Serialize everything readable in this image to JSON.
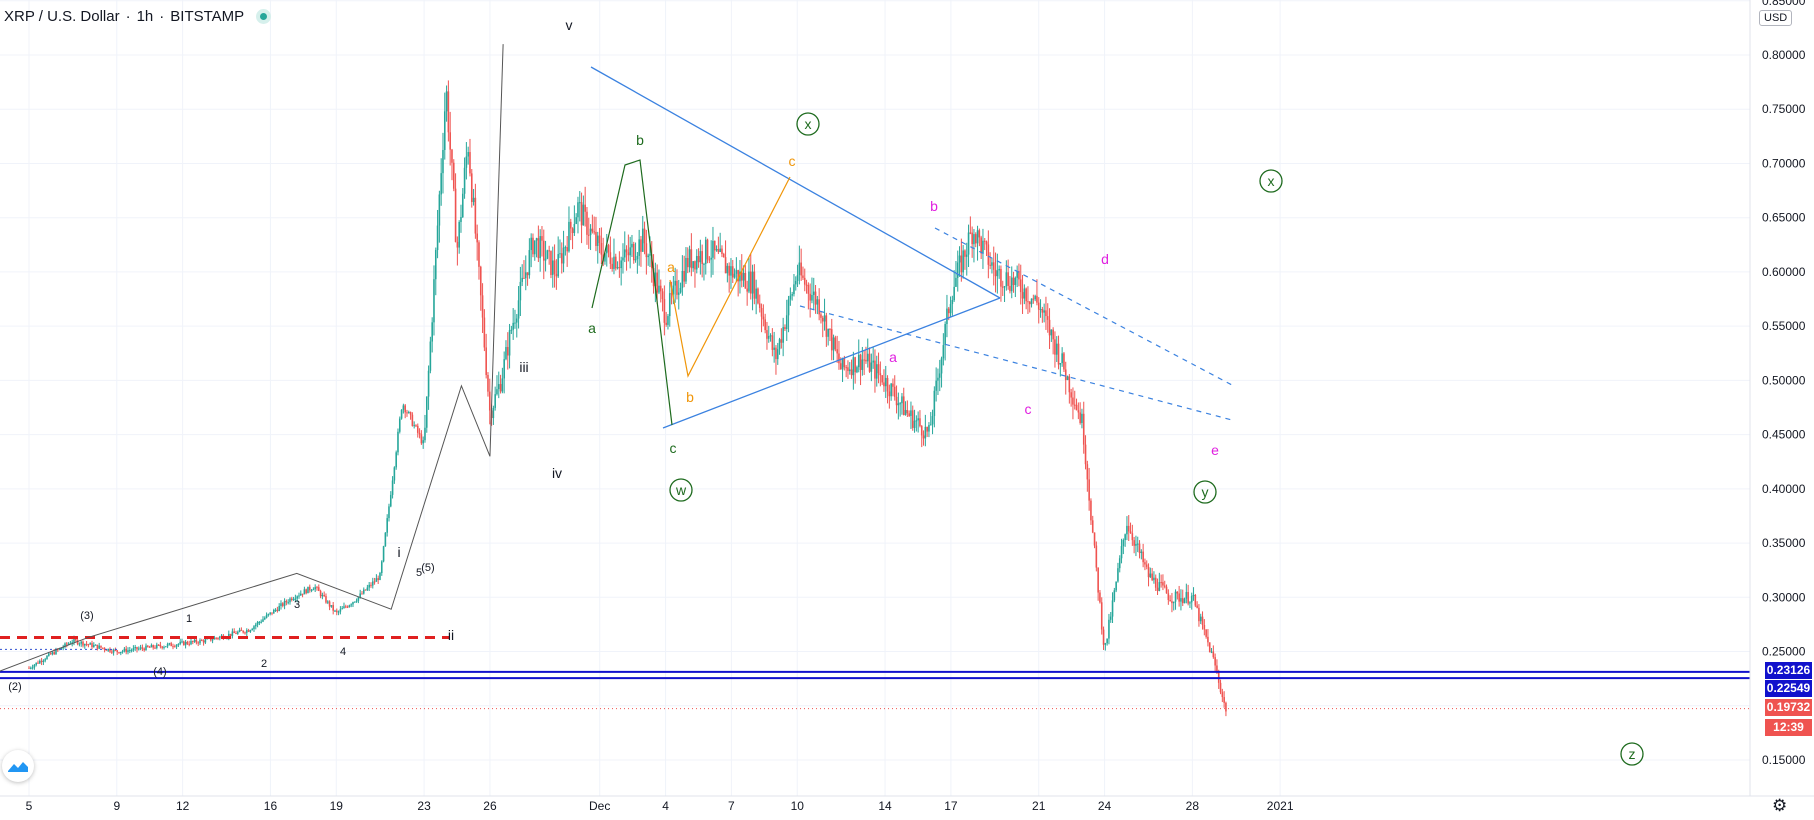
{
  "header": {
    "symbol": "XRP / U.S. Dollar",
    "interval": "1h",
    "exchange": "BITSTAMP",
    "separator": "·"
  },
  "price_axis": {
    "currency_label": "USD",
    "ticks": [
      "0.85000",
      "0.80000",
      "0.75000",
      "0.70000",
      "0.65000",
      "0.60000",
      "0.55000",
      "0.50000",
      "0.45000",
      "0.40000",
      "0.35000",
      "0.30000",
      "0.25000",
      "0.15000"
    ]
  },
  "time_axis": {
    "ticks": [
      "5",
      "9",
      "12",
      "16",
      "19",
      "23",
      "26",
      "Dec",
      "4",
      "7",
      "10",
      "14",
      "17",
      "21",
      "24",
      "28",
      "2021"
    ]
  },
  "price_labels": {
    "level_1": "0.23126",
    "level_2": "0.22549",
    "last_price": "0.19732",
    "countdown": "12:39"
  },
  "colors": {
    "up": "#26a69a",
    "down": "#ef5350",
    "level_line": "#1111cc",
    "red_dash": "#e02020",
    "triangle": "#3b82e0",
    "wave_green": "#1e6b1e",
    "wave_orange": "#f0960a",
    "wave_magenta": "#e020e0",
    "wave_gray": "#404040"
  },
  "chart_data": {
    "type": "line",
    "title": "",
    "xlabel": "",
    "ylabel": "",
    "ylim": [
      0.13,
      0.86
    ],
    "x_ticks": [
      "5",
      "9",
      "12",
      "16",
      "19",
      "23",
      "26",
      "Dec",
      "4",
      "7",
      "10",
      "14",
      "17",
      "21",
      "24",
      "28",
      "2021"
    ],
    "series": [
      {
        "x": [
          "Nov 5",
          "Nov 7",
          "Nov 9",
          "Nov 11",
          "Nov 13",
          "Nov 15",
          "Nov 17",
          "Nov 18",
          "Nov 19",
          "Nov 20",
          "Nov 21",
          "Nov 22",
          "Nov 23",
          "Nov 24",
          "Nov 24",
          "Nov 25",
          "Nov 26",
          "Nov 26",
          "Nov 27",
          "Nov 28",
          "Nov 29",
          "Nov 30",
          "Dec 1",
          "Dec 2",
          "Dec 3",
          "Dec 4",
          "Dec 5",
          "Dec 6",
          "Dec 7",
          "Dec 8",
          "Dec 9",
          "Dec 10",
          "Dec 11",
          "Dec 12",
          "Dec 13",
          "Dec 14",
          "Dec 15",
          "Dec 16",
          "Dec 17",
          "Dec 18",
          "Dec 19",
          "Dec 20",
          "Dec 21",
          "Dec 22",
          "Dec 23",
          "Dec 23",
          "Dec 24",
          "Dec 25",
          "Dec 26",
          "Dec 27",
          "Dec 28",
          "Dec 29",
          "Dec 29"
        ],
        "values": [
          0.235,
          0.26,
          0.25,
          0.255,
          0.26,
          0.27,
          0.3,
          0.31,
          0.285,
          0.3,
          0.32,
          0.48,
          0.44,
          0.77,
          0.62,
          0.72,
          0.47,
          0.5,
          0.55,
          0.63,
          0.6,
          0.66,
          0.62,
          0.61,
          0.63,
          0.56,
          0.61,
          0.62,
          0.6,
          0.59,
          0.52,
          0.6,
          0.57,
          0.51,
          0.52,
          0.5,
          0.47,
          0.45,
          0.58,
          0.64,
          0.6,
          0.59,
          0.57,
          0.52,
          0.46,
          0.35,
          0.25,
          0.37,
          0.32,
          0.3,
          0.3,
          0.24,
          0.197
        ]
      }
    ],
    "horizontal_levels": [
      0.23126,
      0.22549,
      0.19732
    ],
    "last_price": 0.19732,
    "annotations": [
      "(2)",
      "(3)",
      "(4)",
      "(5)",
      "1",
      "2",
      "3",
      "4",
      "5",
      "i",
      "ii",
      "iii",
      "iv",
      "v",
      "a",
      "b",
      "c",
      "a",
      "b",
      "c",
      "a",
      "b",
      "c",
      "d",
      "e",
      "w",
      "x",
      "y",
      "x",
      "z"
    ]
  },
  "annotation_labels": {
    "w2": "(2)",
    "w3": "(3)",
    "w4": "(4)",
    "w5": "(5)",
    "s1": "1",
    "s2": "2",
    "s3": "3",
    "s4": "4",
    "s5": "5",
    "i": "i",
    "ii": "ii",
    "iii": "iii",
    "iv": "iv",
    "v": "v",
    "ga": "a",
    "gb": "b",
    "gc": "c",
    "oa": "a",
    "ob": "b",
    "oc": "c",
    "ma": "a",
    "mb": "b",
    "mc": "c",
    "md": "d",
    "me": "e",
    "cw": "w",
    "cx1": "x",
    "cy": "y",
    "cx2": "x",
    "cz": "z"
  }
}
